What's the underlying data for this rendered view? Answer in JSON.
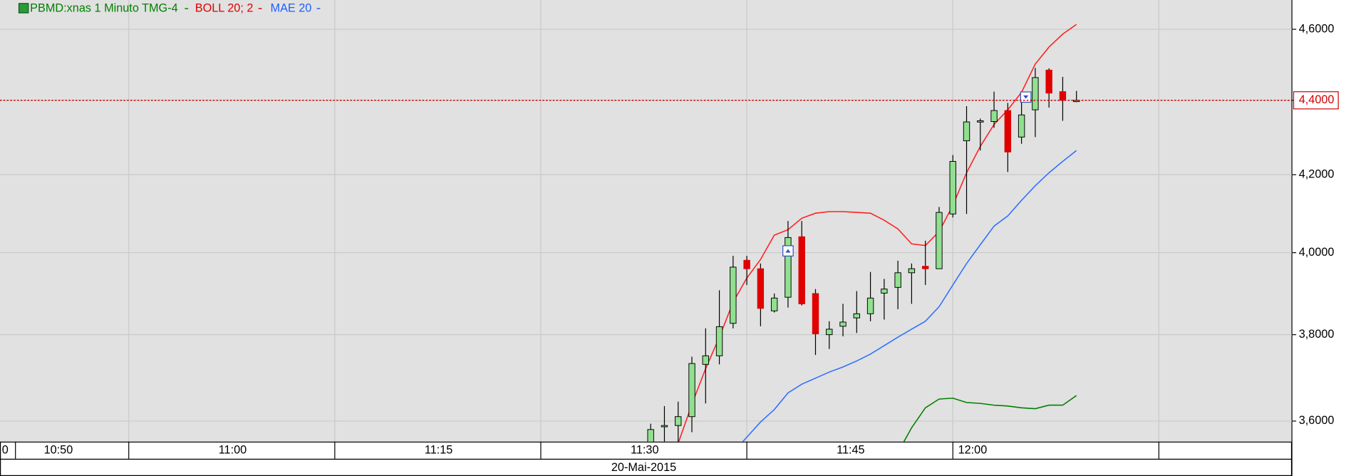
{
  "chart_data": {
    "type": "candlestick",
    "title": "PBMD:xnas 1 Minuto TMG-4",
    "title_color": "#008000",
    "y_scale": "log",
    "ylim": [
      3.554,
      4.685
    ],
    "yticks": [
      {
        "value": 3.6,
        "label": "3,6000"
      },
      {
        "value": 3.8,
        "label": "3,8000"
      },
      {
        "value": 4.0,
        "label": "4,0000"
      },
      {
        "value": 4.2,
        "label": "4,2000"
      },
      {
        "value": 4.4,
        "label": "4,4000"
      },
      {
        "value": 4.6,
        "label": "4,6000"
      }
    ],
    "grid": true,
    "last_price": {
      "value": 4.4,
      "label": "4,4000",
      "color": "#d00000"
    },
    "up_color": "#90e090",
    "down_color": "#e00000",
    "candles": {
      "open": [
        3.553,
        3.59,
        3.59,
        3.61,
        3.73,
        3.75,
        3.827,
        3.981,
        3.96,
        3.857,
        3.89,
        4.04,
        3.899,
        3.8,
        3.82,
        3.84,
        3.85,
        3.9,
        3.914,
        3.95,
        3.966,
        3.96,
        4.098,
        4.29,
        4.344,
        4.342,
        4.372,
        4.3,
        4.374,
        4.484,
        4.424,
        4.4
      ],
      "high": [
        3.594,
        3.634,
        3.644,
        3.748,
        3.815,
        3.907,
        3.992,
        3.992,
        3.973,
        3.899,
        4.08,
        4.08,
        3.91,
        3.832,
        3.874,
        3.905,
        3.952,
        3.935,
        3.98,
        3.973,
        4.03,
        4.116,
        4.252,
        4.384,
        4.35,
        4.424,
        4.393,
        4.417,
        4.49,
        4.489,
        4.465,
        4.426
      ],
      "low": [
        3.54,
        3.54,
        3.54,
        3.575,
        3.64,
        3.73,
        3.815,
        3.92,
        3.82,
        3.853,
        3.865,
        3.87,
        3.752,
        3.766,
        3.796,
        3.804,
        3.832,
        3.836,
        3.861,
        3.874,
        3.92,
        3.96,
        4.089,
        4.098,
        4.264,
        4.325,
        4.207,
        4.282,
        4.3,
        4.38,
        4.344,
        4.395
      ],
      "close": [
        3.581,
        3.59,
        3.61,
        3.732,
        3.75,
        3.819,
        3.964,
        3.96,
        3.863,
        3.888,
        4.038,
        3.874,
        3.802,
        3.813,
        3.83,
        3.85,
        3.888,
        3.91,
        3.95,
        3.96,
        3.96,
        4.102,
        4.235,
        4.341,
        4.344,
        4.372,
        4.26,
        4.36,
        4.463,
        4.42,
        4.4,
        4.4
      ]
    },
    "indicators": [
      {
        "name": "BOLL 20; 2",
        "color": "#e00000",
        "lines": [
          {
            "color": "#ff2020",
            "values": [
              null,
              null,
              3.55,
              3.638,
              3.72,
              3.794,
              3.878,
              3.937,
              3.983,
              4.044,
              4.058,
              4.087,
              4.1,
              4.104,
              4.104,
              4.102,
              4.1,
              4.082,
              4.06,
              4.022,
              4.018,
              4.053,
              4.12,
              4.205,
              4.275,
              4.334,
              4.374,
              4.422,
              4.501,
              4.549,
              4.586,
              4.614
            ]
          },
          {
            "color": "#008000",
            "values": [
              null,
              null,
              null,
              null,
              null,
              null,
              null,
              null,
              null,
              null,
              null,
              null,
              null,
              null,
              null,
              null,
              null,
              null,
              3.53,
              3.585,
              3.63,
              3.65,
              3.652,
              3.642,
              3.64,
              3.636,
              3.634,
              3.63,
              3.628,
              3.636,
              3.636,
              3.658
            ]
          }
        ]
      },
      {
        "name": "MAE 20",
        "color": "#2060ff",
        "lines": [
          {
            "color": "#3070ff",
            "values": [
              null,
              null,
              null,
              null,
              null,
              null,
              3.53,
              3.564,
              3.598,
              3.626,
              3.664,
              3.684,
              3.698,
              3.712,
              3.724,
              3.738,
              3.754,
              3.774,
              3.794,
              3.813,
              3.832,
              3.867,
              3.92,
              3.973,
              4.02,
              4.067,
              4.093,
              4.133,
              4.171,
              4.205,
              4.235,
              4.264
            ]
          }
        ]
      }
    ],
    "x_labels": [
      "0",
      "10:50",
      "11:00",
      "11:15",
      "11:30",
      "11:45",
      "12:00"
    ],
    "date_label": "20-Mai-2015"
  }
}
